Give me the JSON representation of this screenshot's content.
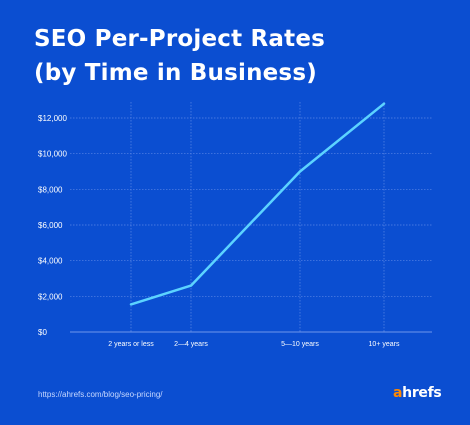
{
  "title_lines": [
    "SEO Per-Project Rates",
    "(by Time in Business)"
  ],
  "source": "https://ahrefs.com/blog/seo-pricing/",
  "logo": {
    "accent": "a",
    "rest": "hrefs"
  },
  "colors": {
    "background": "#0b4ed1",
    "line": "#5cd3ff",
    "logo_accent": "#ff8800"
  },
  "chart_data": {
    "type": "line",
    "title": "SEO Per-Project Rates (by Time in Business)",
    "categories": [
      "2 years or less",
      "2–4 years",
      "5–10 years",
      "10+ years"
    ],
    "x_tick_labels": [
      "2 years or less",
      "2⁠—⁠4 years",
      "5⁠—⁠10 years",
      "10+ years"
    ],
    "series": [
      {
        "values": [
          1550,
          2600,
          9000,
          12800
        ]
      }
    ],
    "ylim": [
      0,
      12000
    ],
    "y_ticks": [
      0,
      2000,
      4000,
      6000,
      8000,
      10000,
      12000
    ],
    "y_tick_labels": [
      "$0",
      "$2,000",
      "$4,000",
      "$6,000",
      "$8,000",
      "$10,000",
      "$12,000"
    ],
    "xlabel": "",
    "ylabel": "",
    "grid": true,
    "legend": "none"
  }
}
